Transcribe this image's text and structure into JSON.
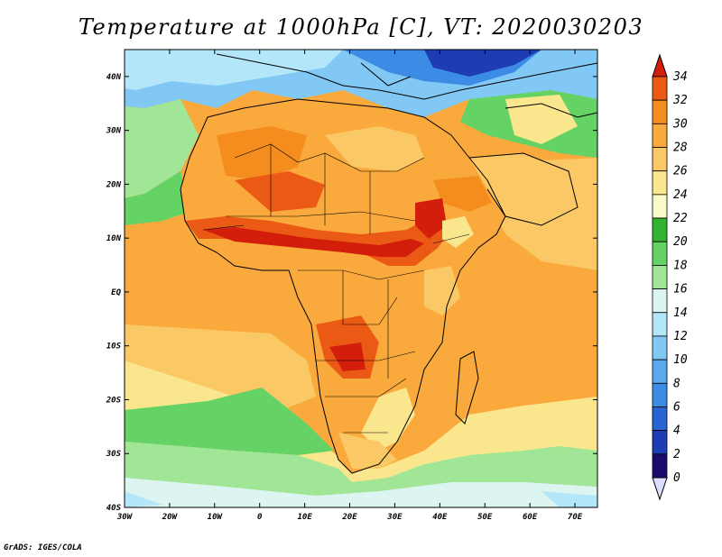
{
  "title": "Temperature at 1000hPa [C], VT: 2020030203",
  "footer": "GrADS: IGES/COLA",
  "chart_data": {
    "type": "heatmap",
    "title": "Temperature at 1000hPa [C], VT: 2020030203",
    "variable": "Temperature at 1000hPa",
    "units": "C",
    "valid_time": "2020030203",
    "lon_range": [
      -30,
      75
    ],
    "lat_range": [
      -40,
      45
    ],
    "lon_ticks": [
      "30W",
      "20W",
      "10W",
      "0",
      "10E",
      "20E",
      "30E",
      "40E",
      "50E",
      "60E",
      "70E"
    ],
    "lat_ticks": [
      "40N",
      "30N",
      "20N",
      "10N",
      "EQ",
      "10S",
      "20S",
      "30S",
      "40S"
    ],
    "colorbar": {
      "levels": [
        0,
        2,
        4,
        6,
        8,
        10,
        12,
        14,
        16,
        18,
        20,
        22,
        24,
        26,
        28,
        30,
        32,
        34
      ],
      "labels": [
        "0",
        "2",
        "4",
        "6",
        "8",
        "10",
        "12",
        "14",
        "16",
        "18",
        "20",
        "22",
        "24",
        "26",
        "28",
        "30",
        "32",
        "34"
      ],
      "colors": [
        "#1a0a6e",
        "#1e3cb4",
        "#2864d2",
        "#3c8ce6",
        "#5aaaf0",
        "#82c8f5",
        "#b4e6fa",
        "#dcf5f0",
        "#a0e696",
        "#64d264",
        "#32b432",
        "#fafac8",
        "#fae68c",
        "#fac864",
        "#faaa3c",
        "#f58c1e",
        "#eb5a14",
        "#d21e0a"
      ],
      "under_color": "#dcdcff",
      "over_color": "#d21e0a"
    }
  }
}
